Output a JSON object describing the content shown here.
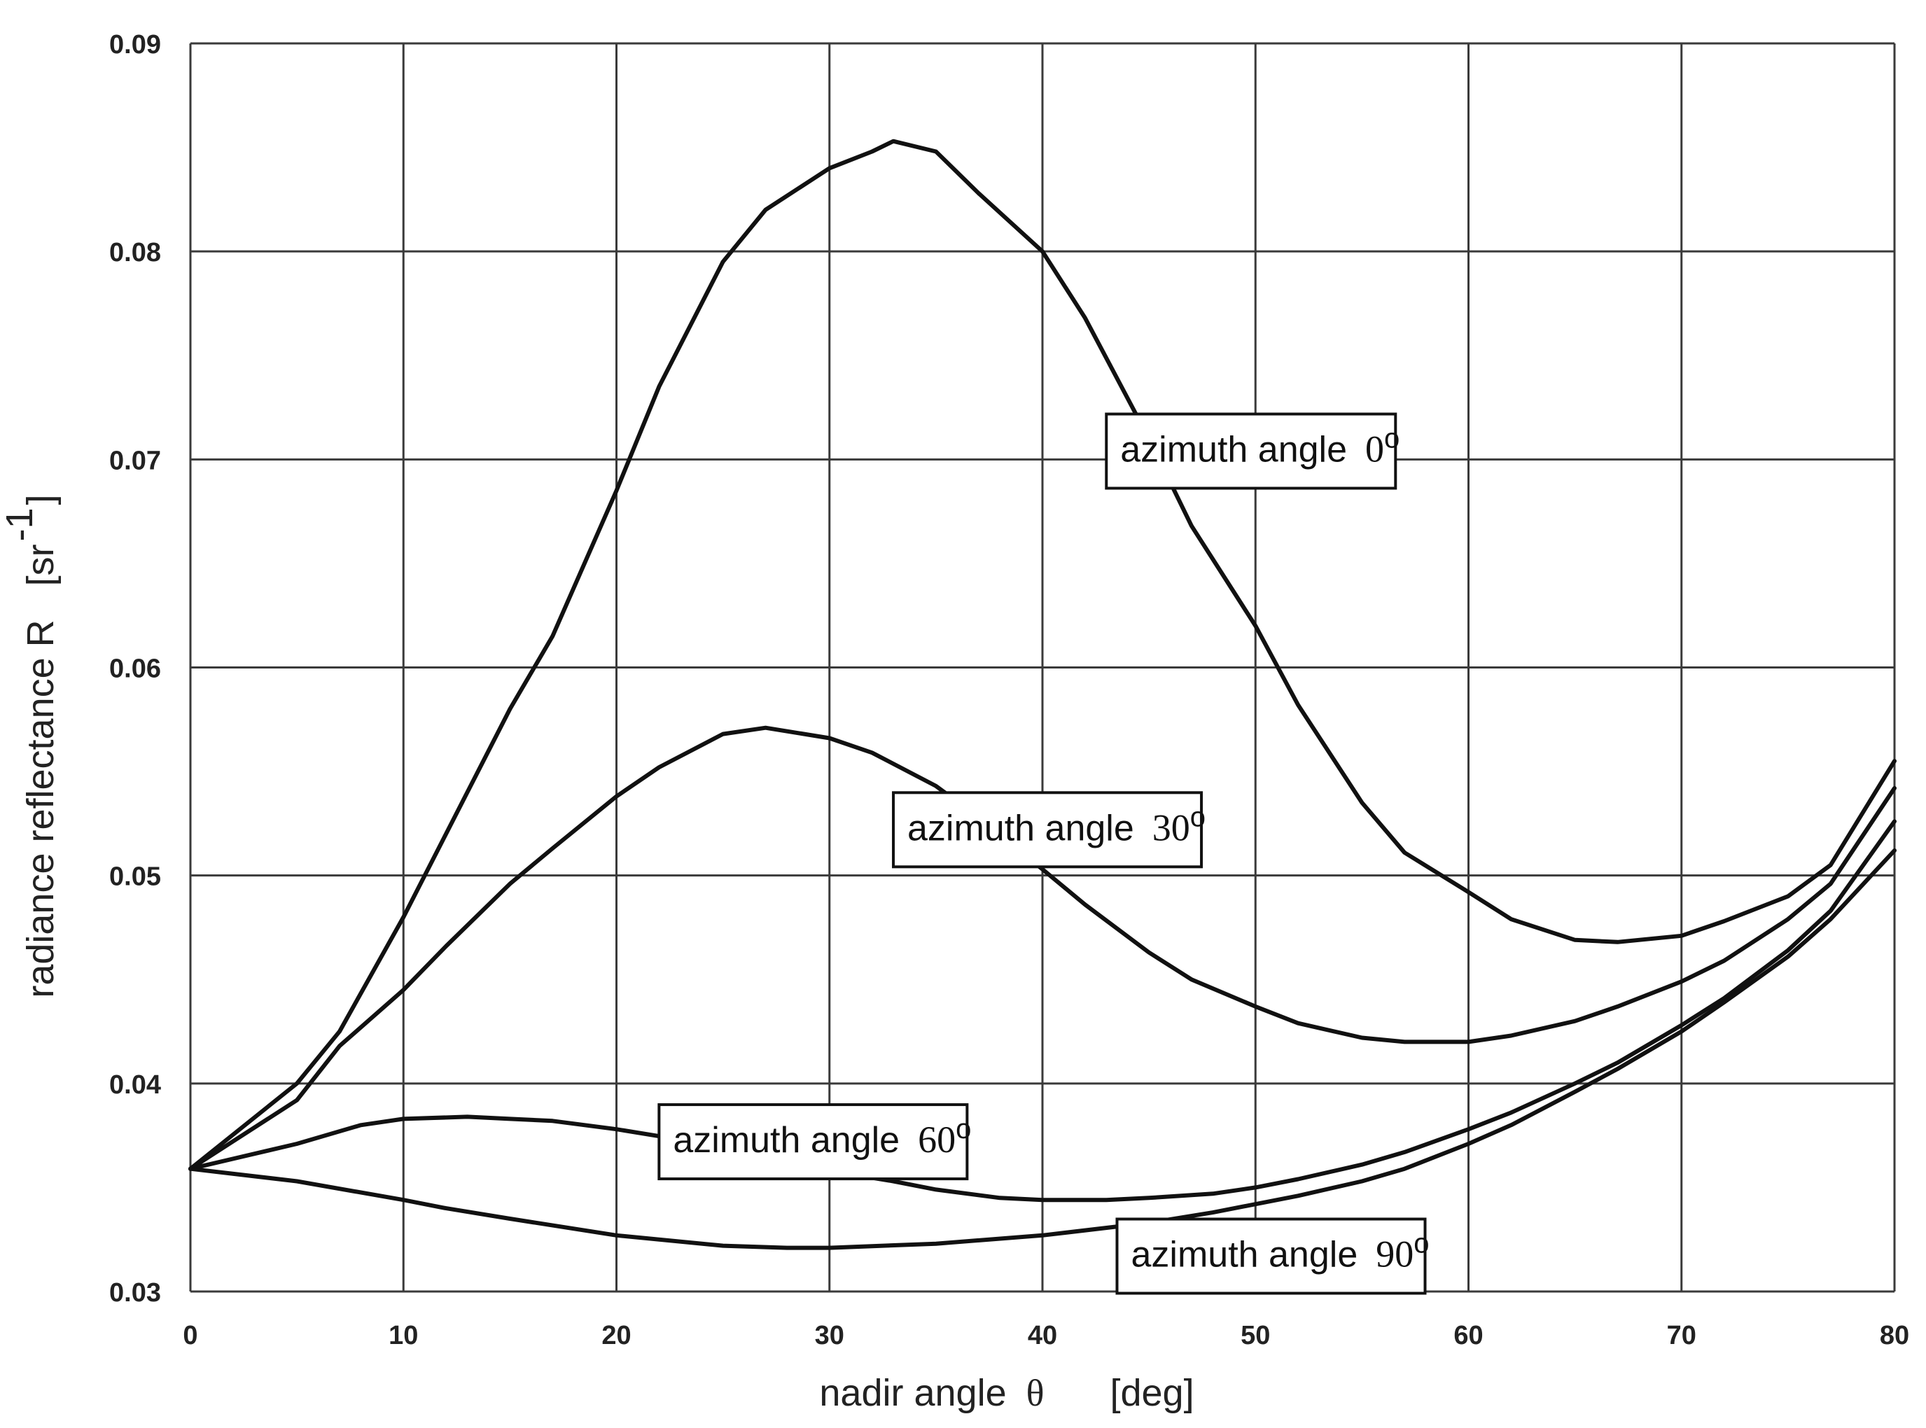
{
  "chart_data": {
    "type": "line",
    "title": "",
    "xlabel": {
      "main": "nadir angle",
      "symbol": "θ",
      "unit": "[deg]"
    },
    "ylabel": {
      "main": "radiance reflectance R",
      "unit_open": "[sr",
      "unit_exp": "-1",
      "unit_close": "]"
    },
    "xlim": [
      0,
      80
    ],
    "ylim": [
      0.03,
      0.09
    ],
    "xticks": [
      0,
      10,
      20,
      30,
      40,
      50,
      60,
      70,
      80
    ],
    "yticks": [
      0.03,
      0.04,
      0.05,
      0.06,
      0.07,
      0.08,
      0.09
    ],
    "ytick_labels": [
      "0.03",
      "0.04",
      "0.05",
      "0.06",
      "0.07",
      "0.08",
      "0.09"
    ],
    "grid": true,
    "series": [
      {
        "name": "azimuth angle 0°",
        "label_prefix": "azimuth angle",
        "label_value": "0",
        "label_degree": "o",
        "label_anchor": [
          43,
          0.0705
        ],
        "x": [
          0,
          5,
          7,
          10,
          12,
          15,
          17,
          20,
          22,
          25,
          27,
          30,
          32,
          33,
          35,
          37,
          40,
          42,
          45,
          47,
          50,
          52,
          55,
          57,
          60,
          62,
          65,
          67,
          70,
          72,
          75,
          77,
          80
        ],
        "y": [
          0.0359,
          0.04,
          0.0425,
          0.048,
          0.052,
          0.058,
          0.0615,
          0.0685,
          0.0735,
          0.0795,
          0.082,
          0.084,
          0.0848,
          0.0853,
          0.0848,
          0.0828,
          0.08,
          0.0768,
          0.071,
          0.0668,
          0.062,
          0.0582,
          0.0535,
          0.0511,
          0.0492,
          0.0479,
          0.0469,
          0.0468,
          0.0471,
          0.0478,
          0.049,
          0.0505,
          0.0555
        ]
      },
      {
        "name": "azimuth angle 30°",
        "label_prefix": "azimuth angle",
        "label_value": "30",
        "label_degree": "o",
        "label_anchor": [
          33,
          0.0523
        ],
        "x": [
          0,
          5,
          7,
          10,
          12,
          15,
          17,
          20,
          22,
          25,
          27,
          30,
          32,
          35,
          37,
          40,
          42,
          45,
          47,
          50,
          52,
          55,
          57,
          60,
          62,
          65,
          67,
          70,
          72,
          75,
          77,
          80
        ],
        "y": [
          0.0359,
          0.0392,
          0.0418,
          0.0445,
          0.0466,
          0.0496,
          0.0513,
          0.0538,
          0.0552,
          0.0568,
          0.0571,
          0.0566,
          0.0559,
          0.0543,
          0.0528,
          0.0503,
          0.0486,
          0.0463,
          0.045,
          0.0437,
          0.0429,
          0.0422,
          0.042,
          0.042,
          0.0423,
          0.043,
          0.0437,
          0.0449,
          0.0459,
          0.0479,
          0.0496,
          0.0542
        ]
      },
      {
        "name": "azimuth angle 60°",
        "label_prefix": "azimuth angle",
        "label_value": "60",
        "label_degree": "o",
        "label_anchor": [
          22,
          0.0373
        ],
        "x": [
          0,
          5,
          8,
          10,
          13,
          15,
          17,
          20,
          23,
          25,
          28,
          30,
          33,
          35,
          38,
          40,
          43,
          45,
          48,
          50,
          52,
          55,
          57,
          60,
          62,
          65,
          67,
          70,
          72,
          75,
          77,
          80
        ],
        "y": [
          0.0359,
          0.0371,
          0.038,
          0.0383,
          0.0384,
          0.0383,
          0.0382,
          0.0378,
          0.0373,
          0.0368,
          0.0362,
          0.0358,
          0.0353,
          0.0349,
          0.0345,
          0.0344,
          0.0344,
          0.0345,
          0.0347,
          0.035,
          0.0354,
          0.0361,
          0.0367,
          0.0378,
          0.0386,
          0.04,
          0.041,
          0.0428,
          0.0441,
          0.0464,
          0.0483,
          0.0526
        ]
      },
      {
        "name": "azimuth angle 90°",
        "label_prefix": "azimuth angle",
        "label_value": "90",
        "label_degree": "o",
        "label_anchor": [
          43.5,
          0.0318
        ],
        "x": [
          0,
          5,
          10,
          12,
          15,
          20,
          25,
          28,
          30,
          35,
          40,
          45,
          48,
          50,
          52,
          55,
          57,
          60,
          62,
          65,
          67,
          70,
          72,
          75,
          77,
          80
        ],
        "y": [
          0.0359,
          0.0353,
          0.0344,
          0.034,
          0.0335,
          0.0327,
          0.0322,
          0.0321,
          0.0321,
          0.0323,
          0.0327,
          0.0333,
          0.0338,
          0.0342,
          0.0346,
          0.0353,
          0.0359,
          0.0371,
          0.038,
          0.0396,
          0.0407,
          0.0425,
          0.0439,
          0.0461,
          0.0479,
          0.0512
        ]
      }
    ]
  }
}
